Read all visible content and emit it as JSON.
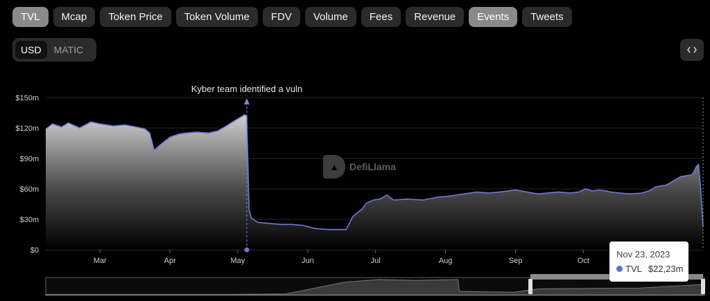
{
  "tabs": [
    {
      "label": "TVL",
      "active": true
    },
    {
      "label": "Mcap",
      "active": false
    },
    {
      "label": "Token Price",
      "active": false
    },
    {
      "label": "Token Volume",
      "active": false
    },
    {
      "label": "FDV",
      "active": false
    },
    {
      "label": "Volume",
      "active": false
    },
    {
      "label": "Fees",
      "active": false
    },
    {
      "label": "Revenue",
      "active": false
    },
    {
      "label": "Events",
      "active": true
    },
    {
      "label": "Tweets",
      "active": false
    }
  ],
  "currency": {
    "options": [
      "USD",
      "MATIC"
    ],
    "selected": "USD"
  },
  "embed_icon": "code-icon",
  "watermark": {
    "text": "DefiLlama",
    "icon": "llama-icon"
  },
  "tooltip": {
    "date": "Nov 23, 2023",
    "series": "TVL",
    "value": "$22,23m"
  },
  "chart_data": {
    "type": "area",
    "title": "",
    "xlabel": "",
    "ylabel": "",
    "y_ticks": [
      "$0",
      "$30m",
      "$60m",
      "$90m",
      "$120m",
      "$150m"
    ],
    "x_ticks": [
      "Mar",
      "Apr",
      "May",
      "Jun",
      "Jul",
      "Aug",
      "Sep",
      "Oct"
    ],
    "x_tick_dates": [
      "2023-03-01",
      "2023-04-01",
      "2023-05-01",
      "2023-06-01",
      "2023-07-01",
      "2023-08-01",
      "2023-09-01",
      "2023-10-01"
    ],
    "ylim": [
      0,
      150
    ],
    "xlim": [
      "2023-02-05",
      "2023-11-23"
    ],
    "grid": true,
    "series": [
      {
        "name": "TVL",
        "color": "#6d7ad8",
        "points": [
          [
            "2023-02-05",
            119
          ],
          [
            "2023-02-08",
            124
          ],
          [
            "2023-02-12",
            121
          ],
          [
            "2023-02-15",
            125
          ],
          [
            "2023-02-20",
            120
          ],
          [
            "2023-02-25",
            126
          ],
          [
            "2023-03-01",
            124
          ],
          [
            "2023-03-07",
            122
          ],
          [
            "2023-03-12",
            123
          ],
          [
            "2023-03-17",
            121
          ],
          [
            "2023-03-21",
            119
          ],
          [
            "2023-03-23",
            115
          ],
          [
            "2023-03-25",
            98
          ],
          [
            "2023-03-28",
            104
          ],
          [
            "2023-04-01",
            111
          ],
          [
            "2023-04-05",
            114
          ],
          [
            "2023-04-08",
            115
          ],
          [
            "2023-04-13",
            116
          ],
          [
            "2023-04-18",
            115
          ],
          [
            "2023-04-22",
            117
          ],
          [
            "2023-04-26",
            122
          ],
          [
            "2023-04-28",
            125
          ],
          [
            "2023-05-01",
            129
          ],
          [
            "2023-05-04",
            133
          ],
          [
            "2023-05-05",
            132
          ],
          [
            "2023-05-06",
            40
          ],
          [
            "2023-05-07",
            31
          ],
          [
            "2023-05-10",
            27
          ],
          [
            "2023-05-15",
            26
          ],
          [
            "2023-05-20",
            25
          ],
          [
            "2023-05-25",
            25
          ],
          [
            "2023-05-30",
            24
          ],
          [
            "2023-06-04",
            21
          ],
          [
            "2023-06-10",
            20
          ],
          [
            "2023-06-15",
            20
          ],
          [
            "2023-06-18",
            20
          ],
          [
            "2023-06-21",
            33
          ],
          [
            "2023-06-25",
            40
          ],
          [
            "2023-06-27",
            46
          ],
          [
            "2023-06-30",
            49
          ],
          [
            "2023-07-03",
            50
          ],
          [
            "2023-07-06",
            54
          ],
          [
            "2023-07-09",
            49
          ],
          [
            "2023-07-15",
            50
          ],
          [
            "2023-07-22",
            49
          ],
          [
            "2023-07-29",
            52
          ],
          [
            "2023-08-03",
            53
          ],
          [
            "2023-08-09",
            55
          ],
          [
            "2023-08-15",
            57
          ],
          [
            "2023-08-20",
            56
          ],
          [
            "2023-08-25",
            57
          ],
          [
            "2023-09-01",
            59
          ],
          [
            "2023-09-06",
            57
          ],
          [
            "2023-09-11",
            55
          ],
          [
            "2023-09-15",
            56
          ],
          [
            "2023-09-20",
            57
          ],
          [
            "2023-09-25",
            56
          ],
          [
            "2023-09-29",
            57
          ],
          [
            "2023-10-02",
            60
          ],
          [
            "2023-10-05",
            58
          ],
          [
            "2023-10-08",
            59
          ],
          [
            "2023-10-11",
            58
          ],
          [
            "2023-10-13",
            57
          ],
          [
            "2023-10-17",
            56
          ],
          [
            "2023-10-22",
            55
          ],
          [
            "2023-10-27",
            56
          ],
          [
            "2023-10-30",
            58
          ],
          [
            "2023-11-02",
            62
          ],
          [
            "2023-11-07",
            64
          ],
          [
            "2023-11-13",
            72
          ],
          [
            "2023-11-18",
            74
          ],
          [
            "2023-11-19",
            77
          ],
          [
            "2023-11-20",
            82
          ],
          [
            "2023-11-21",
            84
          ],
          [
            "2023-11-22",
            58
          ],
          [
            "2023-11-23",
            22.23
          ]
        ]
      }
    ],
    "annotations": [
      {
        "date": "2023-05-05",
        "label": "Kyber team identified a vuln"
      }
    ]
  }
}
